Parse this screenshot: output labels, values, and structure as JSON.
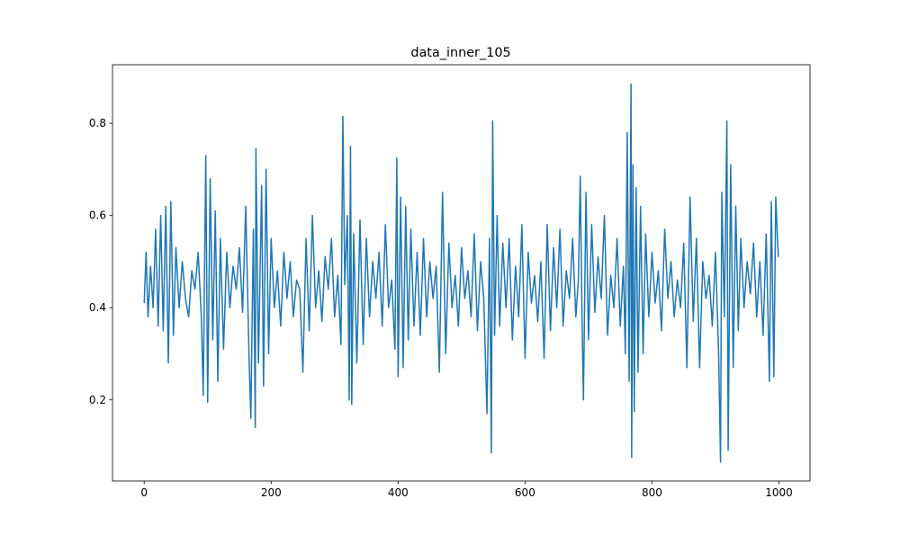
{
  "chart_data": {
    "type": "line",
    "title": "data_inner_105",
    "x": [
      0,
      3,
      6,
      10,
      14,
      18,
      22,
      26,
      30,
      34,
      38,
      42,
      46,
      50,
      55,
      60,
      65,
      70,
      75,
      80,
      85,
      90,
      93,
      97,
      100,
      104,
      108,
      112,
      116,
      120,
      125,
      130,
      135,
      140,
      145,
      150,
      155,
      160,
      165,
      168,
      172,
      175,
      176,
      180,
      185,
      188,
      192,
      196,
      200,
      205,
      210,
      215,
      220,
      225,
      230,
      235,
      240,
      245,
      250,
      255,
      260,
      265,
      270,
      275,
      280,
      285,
      290,
      295,
      300,
      305,
      310,
      313,
      316,
      320,
      323,
      325,
      327,
      330,
      335,
      340,
      345,
      350,
      355,
      360,
      365,
      370,
      375,
      380,
      385,
      390,
      395,
      398,
      400,
      404,
      408,
      412,
      416,
      420,
      425,
      430,
      435,
      440,
      445,
      450,
      455,
      460,
      465,
      470,
      475,
      480,
      485,
      490,
      495,
      500,
      505,
      510,
      515,
      520,
      525,
      530,
      535,
      540,
      544,
      547,
      549,
      552,
      556,
      560,
      565,
      570,
      575,
      580,
      585,
      590,
      595,
      600,
      605,
      610,
      615,
      620,
      625,
      630,
      635,
      640,
      645,
      650,
      655,
      660,
      665,
      670,
      675,
      680,
      684,
      687,
      690,
      692,
      696,
      700,
      705,
      710,
      715,
      720,
      725,
      730,
      735,
      740,
      745,
      750,
      755,
      758,
      761,
      764,
      767,
      768,
      770,
      772,
      775,
      778,
      782,
      786,
      790,
      795,
      800,
      805,
      810,
      815,
      820,
      825,
      830,
      835,
      840,
      845,
      850,
      855,
      860,
      865,
      870,
      875,
      880,
      885,
      890,
      895,
      900,
      905,
      908,
      910,
      914,
      918,
      920,
      924,
      928,
      932,
      936,
      940,
      945,
      950,
      955,
      960,
      965,
      970,
      975,
      980,
      985,
      988,
      992,
      995,
      999
    ],
    "series": [
      {
        "name": "data_inner_105",
        "color": "#1f77b4",
        "values": [
          0.41,
          0.52,
          0.38,
          0.49,
          0.4,
          0.57,
          0.36,
          0.6,
          0.35,
          0.62,
          0.28,
          0.63,
          0.34,
          0.53,
          0.4,
          0.5,
          0.42,
          0.38,
          0.48,
          0.44,
          0.52,
          0.38,
          0.21,
          0.73,
          0.195,
          0.68,
          0.33,
          0.61,
          0.24,
          0.55,
          0.31,
          0.52,
          0.4,
          0.49,
          0.44,
          0.53,
          0.39,
          0.62,
          0.3,
          0.16,
          0.57,
          0.14,
          0.745,
          0.28,
          0.665,
          0.23,
          0.7,
          0.3,
          0.55,
          0.4,
          0.48,
          0.36,
          0.52,
          0.42,
          0.5,
          0.38,
          0.46,
          0.44,
          0.26,
          0.55,
          0.35,
          0.6,
          0.4,
          0.48,
          0.37,
          0.51,
          0.44,
          0.55,
          0.38,
          0.47,
          0.32,
          0.815,
          0.45,
          0.6,
          0.2,
          0.75,
          0.19,
          0.56,
          0.28,
          0.59,
          0.32,
          0.55,
          0.38,
          0.5,
          0.42,
          0.52,
          0.36,
          0.58,
          0.4,
          0.46,
          0.31,
          0.725,
          0.25,
          0.64,
          0.27,
          0.62,
          0.33,
          0.57,
          0.36,
          0.52,
          0.34,
          0.55,
          0.38,
          0.5,
          0.42,
          0.49,
          0.26,
          0.65,
          0.3,
          0.54,
          0.4,
          0.47,
          0.36,
          0.53,
          0.42,
          0.48,
          0.38,
          0.56,
          0.35,
          0.5,
          0.42,
          0.17,
          0.55,
          0.085,
          0.805,
          0.34,
          0.6,
          0.36,
          0.54,
          0.4,
          0.55,
          0.33,
          0.49,
          0.38,
          0.58,
          0.29,
          0.52,
          0.41,
          0.47,
          0.37,
          0.5,
          0.29,
          0.58,
          0.35,
          0.53,
          0.4,
          0.57,
          0.36,
          0.48,
          0.42,
          0.55,
          0.38,
          0.46,
          0.685,
          0.36,
          0.2,
          0.65,
          0.33,
          0.58,
          0.39,
          0.51,
          0.42,
          0.6,
          0.34,
          0.47,
          0.4,
          0.55,
          0.36,
          0.49,
          0.3,
          0.78,
          0.24,
          0.885,
          0.075,
          0.71,
          0.175,
          0.66,
          0.26,
          0.62,
          0.3,
          0.56,
          0.38,
          0.52,
          0.41,
          0.48,
          0.35,
          0.57,
          0.42,
          0.5,
          0.38,
          0.46,
          0.4,
          0.54,
          0.27,
          0.64,
          0.37,
          0.55,
          0.27,
          0.5,
          0.42,
          0.47,
          0.36,
          0.52,
          0.3,
          0.065,
          0.65,
          0.38,
          0.805,
          0.09,
          0.71,
          0.27,
          0.62,
          0.35,
          0.55,
          0.4,
          0.5,
          0.43,
          0.54,
          0.38,
          0.5,
          0.34,
          0.56,
          0.24,
          0.63,
          0.25,
          0.64,
          0.51
        ]
      }
    ],
    "xlim": [
      -49.95,
      1048.95
    ],
    "xticks": [
      0,
      200,
      400,
      600,
      800,
      1000
    ],
    "ylim": [
      0.024,
      0.927
    ],
    "yticks": [
      0.2,
      0.4,
      0.6,
      0.8
    ]
  }
}
